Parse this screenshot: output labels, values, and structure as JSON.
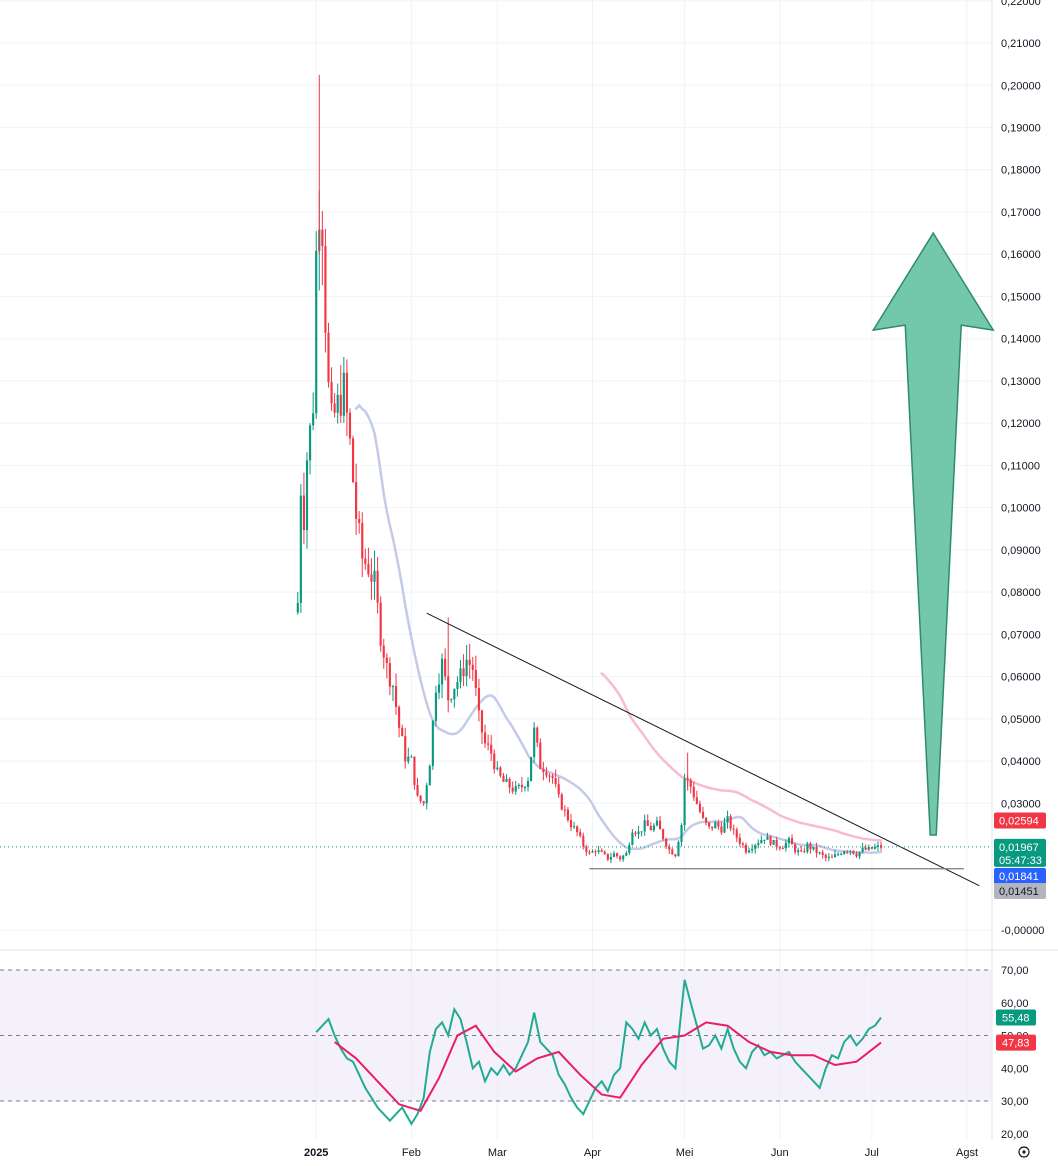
{
  "chart_data": [
    {
      "type": "candlestick",
      "x_labels": [
        "2025",
        "Feb",
        "Mar",
        "Apr",
        "Mei",
        "Jun",
        "Jul",
        "Agst"
      ],
      "y_ticks": [
        "0,22000",
        "0,21000",
        "0,20000",
        "0,19000",
        "0,18000",
        "0,17000",
        "0,16000",
        "0,15000",
        "0,14000",
        "0,13000",
        "0,12000",
        "0,11000",
        "0,10000",
        "0,09000",
        "0,08000",
        "0,07000",
        "0,06000",
        "0,05000",
        "0,04000",
        "0,03000",
        "-0,00000"
      ],
      "ylim": [
        -0.002,
        0.222
      ],
      "price_anchors": [
        [
          "2024-12-26",
          0.0775
        ],
        [
          "2024-12-27",
          0.105
        ],
        [
          "2024-12-28",
          0.098
        ],
        [
          "2024-12-29",
          0.112
        ],
        [
          "2024-12-30",
          0.118
        ],
        [
          "2024-12-31",
          0.125
        ],
        [
          "2025-01-01",
          0.16
        ],
        [
          "2025-01-02",
          0.172
        ],
        [
          "2025-01-03",
          0.167
        ],
        [
          "2025-01-04",
          0.145
        ],
        [
          "2025-01-05",
          0.128
        ],
        [
          "2025-01-06",
          0.12
        ],
        [
          "2025-01-08",
          0.124
        ],
        [
          "2025-01-10",
          0.128
        ],
        [
          "2025-01-12",
          0.115
        ],
        [
          "2025-01-14",
          0.098
        ],
        [
          "2025-01-16",
          0.088
        ],
        [
          "2025-01-18",
          0.086
        ],
        [
          "2025-01-20",
          0.082
        ],
        [
          "2025-01-22",
          0.07
        ],
        [
          "2025-01-24",
          0.062
        ],
        [
          "2025-01-26",
          0.058
        ],
        [
          "2025-01-28",
          0.048
        ],
        [
          "2025-01-30",
          0.041
        ],
        [
          "2025-02-01",
          0.04
        ],
        [
          "2025-02-03",
          0.031
        ],
        [
          "2025-02-05",
          0.03
        ],
        [
          "2025-02-07",
          0.04
        ],
        [
          "2025-02-09",
          0.058
        ],
        [
          "2025-02-11",
          0.063
        ],
        [
          "2025-02-13",
          0.055
        ],
        [
          "2025-02-15",
          0.058
        ],
        [
          "2025-02-17",
          0.06
        ],
        [
          "2025-02-19",
          0.064
        ],
        [
          "2025-02-21",
          0.062
        ],
        [
          "2025-02-23",
          0.05
        ],
        [
          "2025-02-25",
          0.044
        ],
        [
          "2025-02-27",
          0.042
        ],
        [
          "2025-03-01",
          0.037
        ],
        [
          "2025-03-03",
          0.035
        ],
        [
          "2025-03-05",
          0.034
        ],
        [
          "2025-03-07",
          0.033
        ],
        [
          "2025-03-09",
          0.034
        ],
        [
          "2025-03-11",
          0.036
        ],
        [
          "2025-03-13",
          0.047
        ],
        [
          "2025-03-15",
          0.039
        ],
        [
          "2025-03-17",
          0.038
        ],
        [
          "2025-03-19",
          0.036
        ],
        [
          "2025-03-21",
          0.031
        ],
        [
          "2025-03-23",
          0.028
        ],
        [
          "2025-03-25",
          0.025
        ],
        [
          "2025-03-27",
          0.023
        ],
        [
          "2025-03-29",
          0.02
        ],
        [
          "2025-03-31",
          0.018
        ],
        [
          "2025-04-02",
          0.019
        ],
        [
          "2025-04-04",
          0.018
        ],
        [
          "2025-04-06",
          0.017
        ],
        [
          "2025-04-08",
          0.018
        ],
        [
          "2025-04-10",
          0.017
        ],
        [
          "2025-04-12",
          0.018
        ],
        [
          "2025-04-14",
          0.024
        ],
        [
          "2025-04-16",
          0.023
        ],
        [
          "2025-04-18",
          0.025
        ],
        [
          "2025-04-20",
          0.024
        ],
        [
          "2025-04-22",
          0.025
        ],
        [
          "2025-04-24",
          0.022
        ],
        [
          "2025-04-26",
          0.019
        ],
        [
          "2025-04-28",
          0.018
        ],
        [
          "2025-04-30",
          0.025
        ],
        [
          "2025-05-01",
          0.036
        ],
        [
          "2025-05-03",
          0.034
        ],
        [
          "2025-05-05",
          0.03
        ],
        [
          "2025-05-07",
          0.026
        ],
        [
          "2025-05-09",
          0.024
        ],
        [
          "2025-05-11",
          0.025
        ],
        [
          "2025-05-13",
          0.024
        ],
        [
          "2025-05-15",
          0.026
        ],
        [
          "2025-05-17",
          0.023
        ],
        [
          "2025-05-19",
          0.021
        ],
        [
          "2025-05-21",
          0.019
        ],
        [
          "2025-05-23",
          0.02
        ],
        [
          "2025-05-25",
          0.021
        ],
        [
          "2025-05-27",
          0.022
        ],
        [
          "2025-05-29",
          0.021
        ],
        [
          "2025-05-31",
          0.02
        ],
        [
          "2025-06-02",
          0.02
        ],
        [
          "2025-06-04",
          0.021
        ],
        [
          "2025-06-06",
          0.019
        ],
        [
          "2025-06-08",
          0.018
        ],
        [
          "2025-06-10",
          0.02
        ],
        [
          "2025-06-12",
          0.019
        ],
        [
          "2025-06-14",
          0.018
        ],
        [
          "2025-06-16",
          0.017
        ],
        [
          "2025-06-18",
          0.017
        ],
        [
          "2025-06-20",
          0.018
        ],
        [
          "2025-06-22",
          0.019
        ],
        [
          "2025-06-24",
          0.019
        ],
        [
          "2025-06-26",
          0.018
        ],
        [
          "2025-06-28",
          0.019
        ],
        [
          "2025-06-30",
          0.019
        ],
        [
          "2025-07-02",
          0.0195
        ],
        [
          "2025-07-04",
          0.0197
        ]
      ],
      "trendline_resistance": {
        "from": [
          "2025-02-06",
          0.075
        ],
        "to": [
          "2025-08-05",
          0.0105
        ]
      },
      "support_line": {
        "from": [
          "2025-03-31",
          0.0145
        ],
        "to": [
          "2025-07-31",
          0.0145
        ]
      },
      "target_arrow": {
        "from": [
          "2025-07-21",
          0.0225
        ],
        "to": [
          "2025-07-21",
          0.165
        ],
        "color": "#5bbd9c"
      },
      "price_labels": [
        {
          "value": "0,02594",
          "color": "#f23645"
        },
        {
          "value": "0,01967",
          "sub": "05:47:33",
          "color": "#089981"
        },
        {
          "value": "0,01841",
          "color": "#2962ff"
        },
        {
          "value": "0,01451",
          "color": "#b2b5be",
          "text_color": "#131722"
        }
      ],
      "ma_short_color": "#c5cae9",
      "ma_long_color": "#f8bbd0",
      "up_color": "#089981",
      "down_color": "#f23645"
    },
    {
      "type": "line",
      "indicator": "RSI",
      "y_ticks": [
        "70,00",
        "60,00",
        "50,00",
        "40,00",
        "30,00",
        "20,00"
      ],
      "ylim": [
        17,
        74
      ],
      "band": [
        30,
        70
      ],
      "rsi": [
        [
          "2025-01-01",
          51
        ],
        [
          "2025-01-03",
          53
        ],
        [
          "2025-01-05",
          55
        ],
        [
          "2025-01-07",
          50
        ],
        [
          "2025-01-09",
          46
        ],
        [
          "2025-01-11",
          43
        ],
        [
          "2025-01-13",
          42
        ],
        [
          "2025-01-15",
          38
        ],
        [
          "2025-01-17",
          34
        ],
        [
          "2025-01-19",
          31
        ],
        [
          "2025-01-21",
          28
        ],
        [
          "2025-01-23",
          26
        ],
        [
          "2025-01-25",
          24
        ],
        [
          "2025-01-27",
          26
        ],
        [
          "2025-01-29",
          28
        ],
        [
          "2025-02-01",
          23
        ],
        [
          "2025-02-03",
          26
        ],
        [
          "2025-02-05",
          31
        ],
        [
          "2025-02-07",
          45
        ],
        [
          "2025-02-09",
          52
        ],
        [
          "2025-02-11",
          54
        ],
        [
          "2025-02-13",
          50
        ],
        [
          "2025-02-15",
          58
        ],
        [
          "2025-02-17",
          55
        ],
        [
          "2025-02-19",
          48
        ],
        [
          "2025-02-21",
          40
        ],
        [
          "2025-02-23",
          42
        ],
        [
          "2025-02-25",
          36
        ],
        [
          "2025-02-27",
          40
        ],
        [
          "2025-03-01",
          38
        ],
        [
          "2025-03-03",
          41
        ],
        [
          "2025-03-05",
          38
        ],
        [
          "2025-03-07",
          40
        ],
        [
          "2025-03-09",
          44
        ],
        [
          "2025-03-11",
          48
        ],
        [
          "2025-03-13",
          57
        ],
        [
          "2025-03-15",
          48
        ],
        [
          "2025-03-17",
          46
        ],
        [
          "2025-03-19",
          44
        ],
        [
          "2025-03-21",
          38
        ],
        [
          "2025-03-23",
          35
        ],
        [
          "2025-03-25",
          31
        ],
        [
          "2025-03-27",
          28
        ],
        [
          "2025-03-29",
          26
        ],
        [
          "2025-03-31",
          30
        ],
        [
          "2025-04-02",
          34
        ],
        [
          "2025-04-04",
          36
        ],
        [
          "2025-04-06",
          33
        ],
        [
          "2025-04-08",
          38
        ],
        [
          "2025-04-10",
          40
        ],
        [
          "2025-04-12",
          54
        ],
        [
          "2025-04-14",
          52
        ],
        [
          "2025-04-16",
          49
        ],
        [
          "2025-04-18",
          54
        ],
        [
          "2025-04-20",
          50
        ],
        [
          "2025-04-22",
          52
        ],
        [
          "2025-04-24",
          46
        ],
        [
          "2025-04-26",
          42
        ],
        [
          "2025-04-28",
          40
        ],
        [
          "2025-05-01",
          67
        ],
        [
          "2025-05-03",
          60
        ],
        [
          "2025-05-05",
          53
        ],
        [
          "2025-05-07",
          46
        ],
        [
          "2025-05-09",
          47
        ],
        [
          "2025-05-11",
          50
        ],
        [
          "2025-05-13",
          46
        ],
        [
          "2025-05-15",
          52
        ],
        [
          "2025-05-17",
          46
        ],
        [
          "2025-05-19",
          42
        ],
        [
          "2025-05-21",
          40
        ],
        [
          "2025-05-23",
          45
        ],
        [
          "2025-05-25",
          47
        ],
        [
          "2025-05-27",
          44
        ],
        [
          "2025-05-29",
          45
        ],
        [
          "2025-05-31",
          43
        ],
        [
          "2025-06-02",
          44
        ],
        [
          "2025-06-04",
          45
        ],
        [
          "2025-06-06",
          42
        ],
        [
          "2025-06-08",
          40
        ],
        [
          "2025-06-10",
          38
        ],
        [
          "2025-06-12",
          36
        ],
        [
          "2025-06-14",
          34
        ],
        [
          "2025-06-16",
          40
        ],
        [
          "2025-06-18",
          44
        ],
        [
          "2025-06-20",
          43
        ],
        [
          "2025-06-22",
          48
        ],
        [
          "2025-06-24",
          50
        ],
        [
          "2025-06-26",
          47
        ],
        [
          "2025-06-28",
          49
        ],
        [
          "2025-06-30",
          52
        ],
        [
          "2025-07-02",
          53
        ],
        [
          "2025-07-04",
          55.48
        ]
      ],
      "rsi_ma": [
        [
          "2025-01-07",
          48
        ],
        [
          "2025-01-14",
          43
        ],
        [
          "2025-01-21",
          36
        ],
        [
          "2025-01-28",
          29
        ],
        [
          "2025-02-04",
          27
        ],
        [
          "2025-02-10",
          37
        ],
        [
          "2025-02-16",
          50
        ],
        [
          "2025-02-22",
          53
        ],
        [
          "2025-02-28",
          45
        ],
        [
          "2025-03-07",
          39
        ],
        [
          "2025-03-14",
          43
        ],
        [
          "2025-03-21",
          45
        ],
        [
          "2025-03-28",
          38
        ],
        [
          "2025-04-04",
          32
        ],
        [
          "2025-04-10",
          31
        ],
        [
          "2025-04-17",
          41
        ],
        [
          "2025-04-24",
          49
        ],
        [
          "2025-05-01",
          50
        ],
        [
          "2025-05-08",
          54
        ],
        [
          "2025-05-15",
          53
        ],
        [
          "2025-05-22",
          48
        ],
        [
          "2025-05-29",
          45
        ],
        [
          "2025-06-05",
          44
        ],
        [
          "2025-06-12",
          44
        ],
        [
          "2025-06-19",
          41
        ],
        [
          "2025-06-26",
          42
        ],
        [
          "2025-07-04",
          47.83
        ]
      ],
      "labels": [
        {
          "value": "55,48",
          "color": "#089981"
        },
        {
          "value": "47,83",
          "color": "#f23645"
        }
      ],
      "rsi_color": "#22ab94",
      "ma_color": "#e91e63",
      "band_fill": "#ede7f6"
    }
  ]
}
